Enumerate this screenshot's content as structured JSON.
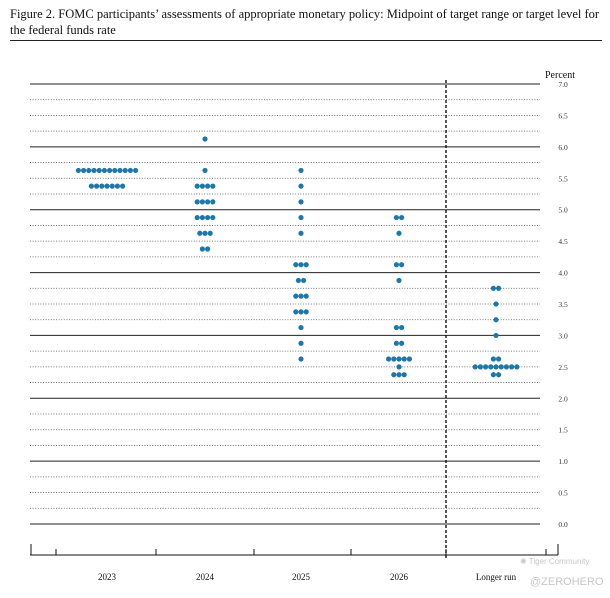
{
  "title": "Figure 2.  FOMC participants’ assessments of appropriate monetary policy: Midpoint of target range or target level for the federal funds rate",
  "chart_data": {
    "type": "scatter",
    "ylabel": "Percent",
    "ylim": [
      0.0,
      7.0
    ],
    "y_step": 0.25,
    "y_ticks": [
      "0.0",
      "0.5",
      "1.0",
      "1.5",
      "2.0",
      "2.5",
      "3.0",
      "3.5",
      "4.0",
      "4.5",
      "5.0",
      "5.5",
      "6.0",
      "6.5",
      "7.0"
    ],
    "categories": [
      "2023",
      "2024",
      "2025",
      "2026",
      "Longer run"
    ],
    "dot_color": "#1f77a8",
    "counts": [
      {
        "category": "2023",
        "points": [
          {
            "y": 5.625,
            "n": 12
          },
          {
            "y": 5.375,
            "n": 7
          }
        ]
      },
      {
        "category": "2024",
        "points": [
          {
            "y": 6.125,
            "n": 1
          },
          {
            "y": 5.625,
            "n": 1
          },
          {
            "y": 5.375,
            "n": 4
          },
          {
            "y": 5.125,
            "n": 4
          },
          {
            "y": 4.875,
            "n": 4
          },
          {
            "y": 4.625,
            "n": 3
          },
          {
            "y": 4.375,
            "n": 2
          }
        ]
      },
      {
        "category": "2025",
        "points": [
          {
            "y": 5.625,
            "n": 1
          },
          {
            "y": 5.375,
            "n": 1
          },
          {
            "y": 5.125,
            "n": 1
          },
          {
            "y": 4.875,
            "n": 1
          },
          {
            "y": 4.625,
            "n": 1
          },
          {
            "y": 4.125,
            "n": 3
          },
          {
            "y": 3.875,
            "n": 2
          },
          {
            "y": 3.625,
            "n": 3
          },
          {
            "y": 3.375,
            "n": 3
          },
          {
            "y": 3.125,
            "n": 1
          },
          {
            "y": 2.875,
            "n": 1
          },
          {
            "y": 2.625,
            "n": 1
          }
        ]
      },
      {
        "category": "2026",
        "points": [
          {
            "y": 4.875,
            "n": 2
          },
          {
            "y": 4.625,
            "n": 1
          },
          {
            "y": 4.125,
            "n": 2
          },
          {
            "y": 3.875,
            "n": 1
          },
          {
            "y": 3.125,
            "n": 2
          },
          {
            "y": 2.875,
            "n": 2
          },
          {
            "y": 2.625,
            "n": 5
          },
          {
            "y": 2.5,
            "n": 1
          },
          {
            "y": 2.375,
            "n": 3
          }
        ]
      },
      {
        "category": "Longer run",
        "points": [
          {
            "y": 3.75,
            "n": 2
          },
          {
            "y": 3.5,
            "n": 1
          },
          {
            "y": 3.25,
            "n": 1
          },
          {
            "y": 3.0,
            "n": 1
          },
          {
            "y": 2.625,
            "n": 2
          },
          {
            "y": 2.5,
            "n": 9
          },
          {
            "y": 2.375,
            "n": 2
          }
        ]
      }
    ]
  },
  "watermark": {
    "line1": "Tiger Community",
    "line2": "@ZEROHERO"
  }
}
